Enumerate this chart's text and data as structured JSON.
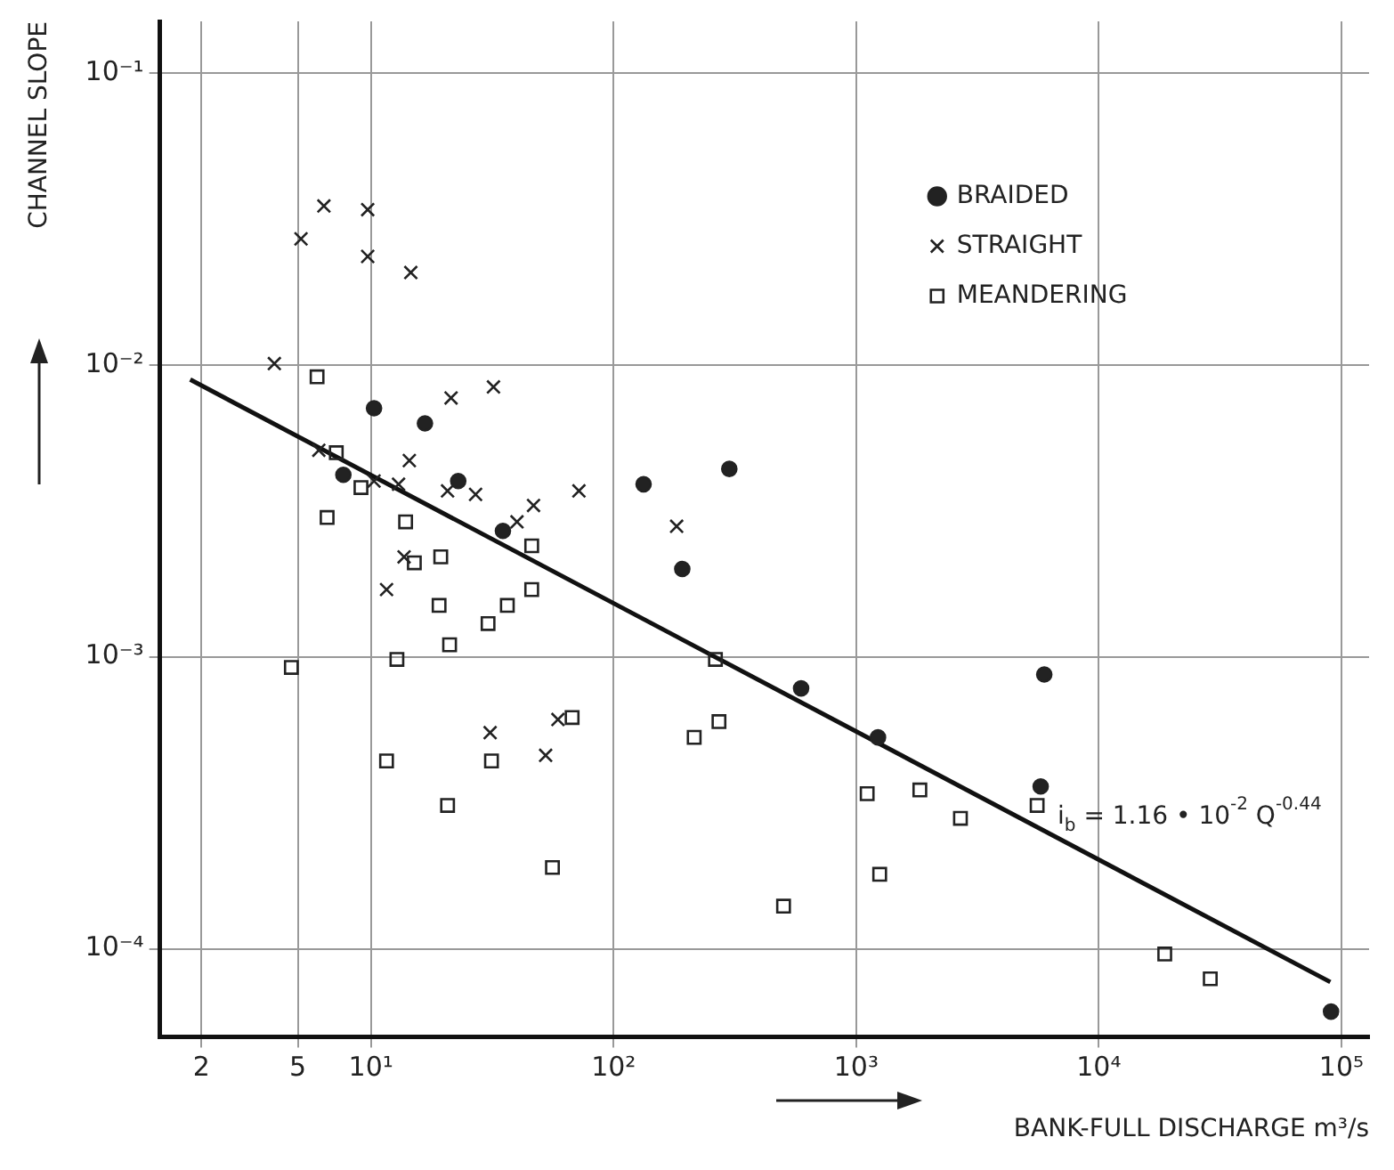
{
  "chart_data": {
    "type": "scatter",
    "xlabel": "BANK-FULL DISCHARGE m³/s",
    "ylabel": "CHANNEL SLOPE",
    "log": "xy",
    "grid": true,
    "legend": "top right",
    "xlim": [
      1.35,
      130000
    ],
    "ylim": [
      5e-05,
      0.15
    ],
    "xticks": [
      2,
      5,
      {
        "value": 10,
        "label": "10¹"
      },
      {
        "value": 100,
        "label": "10²"
      },
      {
        "value": 1000,
        "label": "10³"
      },
      {
        "value": 10000,
        "label": "10⁴"
      },
      {
        "value": 100000,
        "label": "10⁵"
      }
    ],
    "yticks": [
      {
        "value": 0.0001,
        "label": "10⁻⁴"
      },
      {
        "value": 0.001,
        "label": "10⁻³"
      },
      {
        "value": 0.01,
        "label": "10⁻²"
      },
      {
        "value": 0.1,
        "label": "10⁻¹"
      }
    ],
    "annotations": [
      "i$_{b}$ = 1.16 • 10$^{-2}$ Q$^{-0.44}$"
    ],
    "series": [
      {
        "name": "BRAIDED",
        "color": "#222222",
        "marker": "circle",
        "x": [
          10.3,
          16.7,
          7.7,
          22.9,
          133,
          300,
          35,
          192,
          593,
          1230,
          5960,
          5760,
          90600
        ],
        "values": [
          0.0071,
          0.0063,
          0.0042,
          0.004,
          0.0039,
          0.0044,
          0.0027,
          0.002,
          0.00078,
          0.00053,
          0.00087,
          0.00036,
          6.1e-05
        ]
      },
      {
        "name": "STRAIGHT",
        "color": "#222222",
        "marker": "cross",
        "x": [
          6.4,
          5.15,
          9.7,
          9.7,
          14.6,
          4,
          21.4,
          32,
          6.1,
          14.4,
          10.3,
          13,
          20.7,
          27,
          72,
          46.8,
          40,
          182,
          13.7,
          11.6,
          31,
          52.5,
          59
        ],
        "values": [
          0.035,
          0.027,
          0.034,
          0.0235,
          0.0207,
          0.0101,
          0.0077,
          0.0084,
          0.0051,
          0.0047,
          0.004,
          0.0039,
          0.0037,
          0.0036,
          0.0037,
          0.0033,
          0.0029,
          0.0028,
          0.0022,
          0.0017,
          0.00055,
          0.00046,
          0.00061
        ]
      },
      {
        "name": "MEANDERING",
        "color": "#222222",
        "marker": "square",
        "x": [
          6,
          7.2,
          9.1,
          6.6,
          13.9,
          46,
          15.1,
          19.4,
          19.1,
          36.5,
          46,
          30.4,
          21.1,
          12.8,
          4.7,
          263,
          67.5,
          272,
          215,
          11.6,
          31.4,
          20.7,
          56,
          1110,
          1830,
          2690,
          5570,
          1250,
          502,
          18700,
          28800
        ],
        "values": [
          0.0091,
          0.005,
          0.0038,
          0.003,
          0.0029,
          0.0024,
          0.0021,
          0.0022,
          0.0015,
          0.0015,
          0.0017,
          0.0013,
          0.0011,
          0.00098,
          0.00092,
          0.00098,
          0.00062,
          0.0006,
          0.00053,
          0.00044,
          0.00044,
          0.00031,
          0.00019,
          0.00034,
          0.00035,
          0.00028,
          0.00031,
          0.00018,
          0.00014,
          9.6e-05,
          7.9e-05
        ]
      },
      {
        "type": "line",
        "color": "#111111",
        "marker": "none",
        "line_style": "solid",
        "x": [
          1.8,
          90000
        ],
        "values": [
          0.0089,
          7.7e-05
        ]
      }
    ]
  }
}
